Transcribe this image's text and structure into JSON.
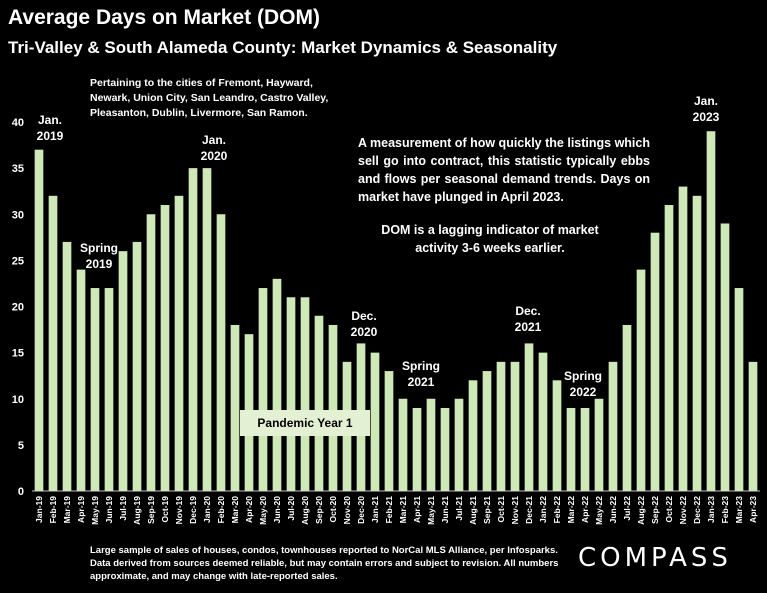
{
  "header": {
    "title": "Average Days on Market (DOM)",
    "subtitle": "Tri-Valley & South Alameda County: Market Dynamics & Seasonality"
  },
  "notes": {
    "cities": "Pertaining to the cities of Fremont, Hayward, Newark, Union City, San Leandro, Castro Valley, Pleasanton, Dublin, Livermore, San Ramon.",
    "description": "A measurement of how quickly the listings which sell go into contract, this statistic typically ebbs and flows per seasonal demand trends. Days on market have plunged in April 2023.",
    "lagging": "DOM is a lagging indicator of market activity 3-6 weeks earlier.",
    "footnote": "Large sample of sales of houses, condos, townhouses reported to NorCal MLS Alliance, per Infosparks. Data derived from sources deemed reliable, but may contain errors and subject to revision. All numbers approximate, and may change with late-reported sales.",
    "brand": "COMPASS"
  },
  "annotations": {
    "jan2019": "Jan.\n2019",
    "spring2019": "Spring\n2019",
    "jan2020": "Jan.\n2020",
    "dec2020": "Dec.\n2020",
    "spring2021": "Spring\n2021",
    "dec2021": "Dec.\n2021",
    "spring2022": "Spring\n2022",
    "jan2023": "Jan.\n2023",
    "pandemic": "Pandemic Year 1"
  },
  "chart_data": {
    "type": "bar",
    "bar_color": "#cfe8b8",
    "ylim": [
      0,
      40
    ],
    "yticks": [
      0,
      5,
      10,
      15,
      20,
      25,
      30,
      35,
      40
    ],
    "grid": false,
    "categories": [
      "Jan-19",
      "Feb-19",
      "Mar-19",
      "Apr-19",
      "May-19",
      "Jun-19",
      "Jul-19",
      "Aug-19",
      "Sep-19",
      "Oct-19",
      "Nov-19",
      "Dec-19",
      "Jan-20",
      "Feb-20",
      "Mar-20",
      "Apr-20",
      "May-20",
      "Jun-20",
      "Jul-20",
      "Aug-20",
      "Sep-20",
      "Oct-20",
      "Nov-20",
      "Dec-20",
      "Jan-21",
      "Feb-21",
      "Mar-21",
      "Apr-21",
      "May-21",
      "Jun-21",
      "Jul-21",
      "Aug-21",
      "Sep-21",
      "Oct-21",
      "Nov-21",
      "Dec-21",
      "Jan-22",
      "Feb-22",
      "Mar-22",
      "Apr-22",
      "May-22",
      "Jun-22",
      "Jul-22",
      "Aug-22",
      "Sep-22",
      "Oct-22",
      "Nov-22",
      "Dec-22",
      "Jan-23",
      "Feb-23",
      "Mar-23",
      "Apr-23"
    ],
    "values": [
      37,
      32,
      27,
      24,
      22,
      22,
      26,
      27,
      30,
      31,
      32,
      35,
      35,
      30,
      18,
      17,
      22,
      23,
      21,
      21,
      19,
      18,
      14,
      16,
      15,
      13,
      10,
      9,
      10,
      9,
      10,
      12,
      13,
      14,
      14,
      16,
      15,
      12,
      9,
      9,
      10,
      14,
      18,
      24,
      28,
      31,
      33,
      32,
      39,
      29,
      22,
      14
    ]
  }
}
